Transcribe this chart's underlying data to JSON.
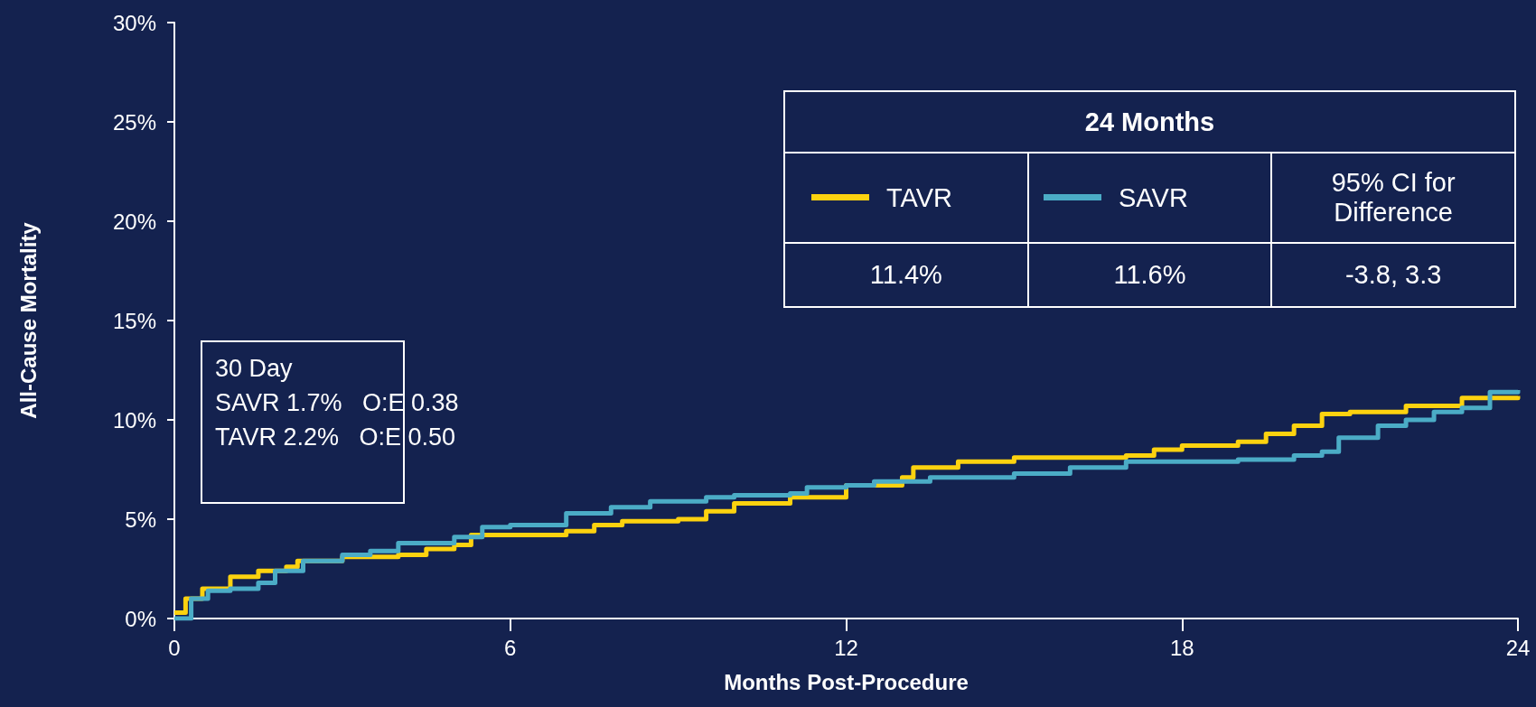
{
  "chart_data": {
    "type": "step",
    "xlabel": "Months Post-Procedure",
    "ylabel": "All-Cause Mortality",
    "xlim": [
      0,
      24
    ],
    "xticks": [
      0,
      6,
      12,
      18,
      24
    ],
    "ylim": [
      0,
      30
    ],
    "yticks": [
      {
        "value": 0,
        "label": "0%"
      },
      {
        "value": 5,
        "label": "5%"
      },
      {
        "value": 10,
        "label": "10%"
      },
      {
        "value": 15,
        "label": "15%"
      },
      {
        "value": 20,
        "label": "20%"
      },
      {
        "value": 25,
        "label": "25%"
      },
      {
        "value": 30,
        "label": "30%"
      }
    ],
    "grid": false,
    "legend": "top right",
    "marker": "none",
    "line_style": "solid",
    "series": [
      {
        "name": "TAVR",
        "color": "#fcd20f",
        "x": [
          0,
          0.2,
          0.5,
          1,
          1.5,
          2,
          2.2,
          3,
          4,
          4.5,
          5,
          5.3,
          6,
          7,
          7.5,
          8,
          9,
          9.5,
          10,
          11,
          12,
          13,
          13.2,
          14,
          15,
          17,
          17.5,
          18,
          19,
          19.5,
          20,
          20.5,
          21,
          22,
          23,
          24
        ],
        "values": [
          0.3,
          1.0,
          1.5,
          2.1,
          2.4,
          2.6,
          2.9,
          3.1,
          3.2,
          3.5,
          3.7,
          4.2,
          4.2,
          4.4,
          4.7,
          4.9,
          5.0,
          5.4,
          5.8,
          6.1,
          6.7,
          7.1,
          7.6,
          7.9,
          8.1,
          8.2,
          8.5,
          8.7,
          8.9,
          9.3,
          9.7,
          10.3,
          10.4,
          10.7,
          11.1,
          11.2
        ]
      },
      {
        "name": "SAVR",
        "color": "#4bacc6",
        "x": [
          0,
          0.3,
          0.6,
          1,
          1.5,
          1.8,
          2.3,
          3,
          3.5,
          4,
          5,
          5.5,
          6,
          7,
          7.8,
          8.5,
          9.5,
          10,
          11,
          11.3,
          12,
          12.5,
          13.5,
          15,
          16,
          17,
          19,
          20,
          20.5,
          20.8,
          21.5,
          22,
          22.5,
          23,
          23.5,
          24
        ],
        "values": [
          0,
          1.0,
          1.4,
          1.5,
          1.8,
          2.4,
          2.9,
          3.2,
          3.4,
          3.8,
          4.1,
          4.6,
          4.7,
          5.3,
          5.6,
          5.9,
          6.1,
          6.2,
          6.3,
          6.6,
          6.7,
          6.9,
          7.1,
          7.3,
          7.6,
          7.9,
          8.0,
          8.2,
          8.4,
          9.1,
          9.7,
          10.0,
          10.4,
          10.6,
          11.4,
          11.5
        ]
      }
    ],
    "annotations": [
      "24 Months",
      "95% CI for Difference",
      "11.4%",
      "11.6%",
      "-3.8, 3.3",
      "30 Day",
      "SAVR 1.7%   O:E 0.38",
      "TAVR 2.2%   O:E 0.50"
    ]
  }
}
